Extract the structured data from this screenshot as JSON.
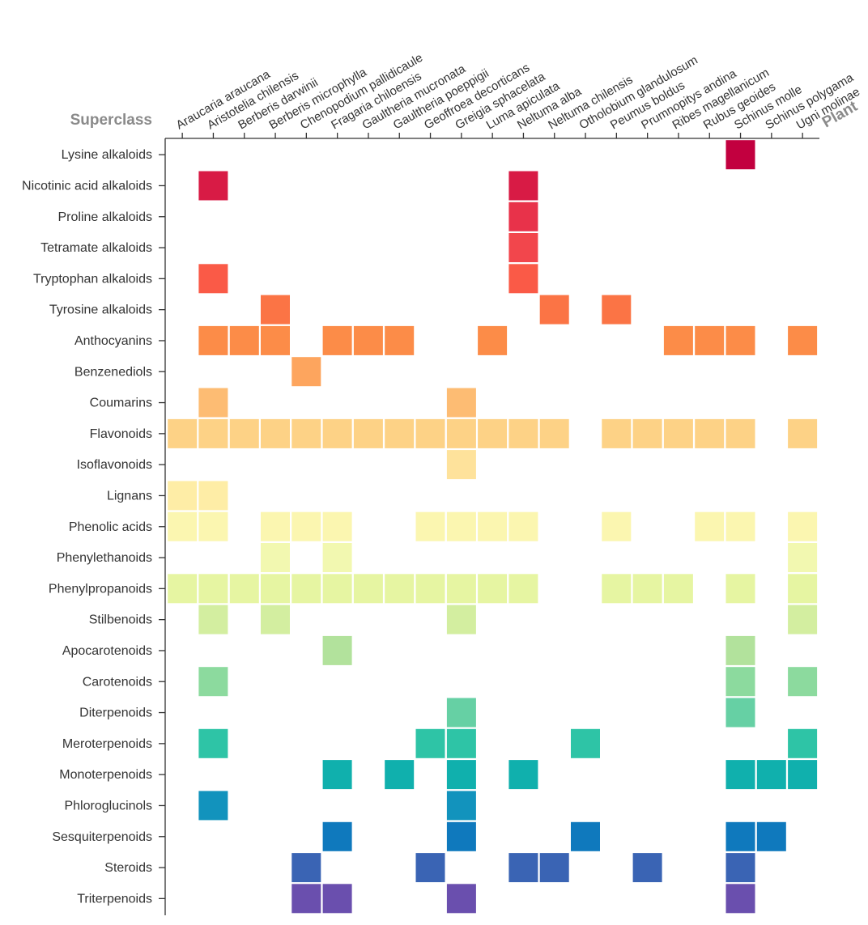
{
  "chart_data": {
    "type": "heatmap",
    "title": "",
    "row_axis_title": "Superclass",
    "col_axis_title": "Plant",
    "columns": [
      "Araucaria araucana",
      "Aristotelia chilensis",
      "Berberis darwinii",
      "Berberis microphylla",
      "Chenopodium pallidicaule",
      "Fragaria chiloensis",
      "Gaultheria mucronata",
      "Gaultheria poeppigii",
      "Geoffroea decorticans",
      "Greigia sphacelata",
      "Luma apiculata",
      "Neltuma alba",
      "Neltuma chilensis",
      "Otholobium glandulosum",
      "Peumus boldus",
      "Prumnopitys andina",
      "Ribes magellanicum",
      "Rubus geoides",
      "Schinus molle",
      "Schinus polygama",
      "Ugni molinae"
    ],
    "rows": [
      {
        "name": "Lysine alkaloids",
        "color": "#c2003f",
        "present": [
          18
        ]
      },
      {
        "name": "Nicotinic acid alkaloids",
        "color": "#d81b45",
        "present": [
          1,
          11
        ]
      },
      {
        "name": "Proline alkaloids",
        "color": "#e8324a",
        "present": [
          11
        ]
      },
      {
        "name": "Tetramate alkaloids",
        "color": "#f2464c",
        "present": [
          11
        ]
      },
      {
        "name": "Tryptophan alkaloids",
        "color": "#fa5a47",
        "present": [
          1,
          11
        ]
      },
      {
        "name": "Tyrosine alkaloids",
        "color": "#fb7445",
        "present": [
          3,
          12,
          14
        ]
      },
      {
        "name": "Anthocyanins",
        "color": "#fc8c48",
        "present": [
          1,
          2,
          3,
          5,
          6,
          7,
          10,
          16,
          17,
          18,
          20
        ]
      },
      {
        "name": "Benzenediols",
        "color": "#fda55e",
        "present": [
          4
        ]
      },
      {
        "name": "Coumarins",
        "color": "#fdbc73",
        "present": [
          1,
          9
        ]
      },
      {
        "name": "Flavonoids",
        "color": "#fdd286",
        "present": [
          0,
          1,
          2,
          3,
          4,
          5,
          6,
          7,
          8,
          9,
          10,
          11,
          12,
          14,
          15,
          16,
          17,
          18,
          20
        ]
      },
      {
        "name": "Isoflavonoids",
        "color": "#fee29b",
        "present": [
          9
        ]
      },
      {
        "name": "Lignans",
        "color": "#feeda6",
        "present": [
          0,
          1
        ]
      },
      {
        "name": "Phenolic acids",
        "color": "#fbf6b0",
        "present": [
          0,
          1,
          3,
          4,
          5,
          8,
          9,
          10,
          11,
          14,
          17,
          18,
          20
        ]
      },
      {
        "name": "Phenylethanoids",
        "color": "#f2f8b0",
        "present": [
          3,
          5,
          20
        ]
      },
      {
        "name": "Phenylpropanoids",
        "color": "#e6f5a2",
        "present": [
          0,
          1,
          2,
          3,
          4,
          5,
          6,
          7,
          8,
          9,
          10,
          11,
          14,
          15,
          16,
          18,
          20
        ]
      },
      {
        "name": "Stilbenoids",
        "color": "#d3eea0",
        "present": [
          1,
          3,
          9,
          20
        ]
      },
      {
        "name": "Apocarotenoids",
        "color": "#b2e29c",
        "present": [
          5,
          18
        ]
      },
      {
        "name": "Carotenoids",
        "color": "#8cda9e",
        "present": [
          1,
          18,
          20
        ]
      },
      {
        "name": "Diterpenoids",
        "color": "#66d0a4",
        "present": [
          9,
          18
        ]
      },
      {
        "name": "Meroterpenoids",
        "color": "#2ec4a6",
        "present": [
          1,
          8,
          9,
          13,
          20
        ]
      },
      {
        "name": "Monoterpenoids",
        "color": "#10b0ad",
        "present": [
          5,
          7,
          9,
          11,
          18,
          19,
          20
        ]
      },
      {
        "name": "Phloroglucinols",
        "color": "#1293bd",
        "present": [
          1,
          9
        ]
      },
      {
        "name": "Sesquiterpenoids",
        "color": "#0f79bd",
        "present": [
          5,
          9,
          13,
          18,
          19
        ]
      },
      {
        "name": "Steroids",
        "color": "#3a64b4",
        "present": [
          4,
          8,
          11,
          12,
          15,
          18
        ]
      },
      {
        "name": "Triterpenoids",
        "color": "#6a4fae",
        "present": [
          4,
          5,
          9,
          18
        ]
      }
    ]
  }
}
